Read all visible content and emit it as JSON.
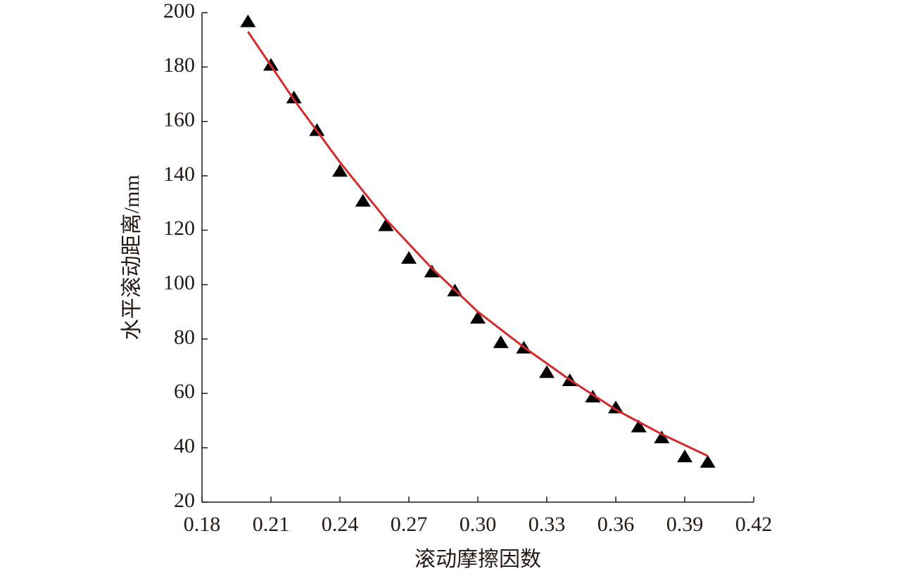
{
  "chart_data": {
    "type": "scatter",
    "x_label": "滚动摩擦因数",
    "y_label": "水平滚动距离/mm",
    "xlim": [
      0.18,
      0.42
    ],
    "xticks": [
      0.18,
      0.21,
      0.24,
      0.27,
      {
        "value": 0.3,
        "label": "0.30"
      },
      0.33,
      0.36,
      0.39,
      0.42
    ],
    "ylim": [
      20,
      200
    ],
    "yticks": [
      20,
      40,
      60,
      80,
      100,
      120,
      140,
      160,
      180,
      200
    ],
    "grid": false,
    "series": [
      {
        "style": "triangle",
        "color": "#000000",
        "x": [
          0.2,
          0.21,
          0.22,
          0.23,
          0.24,
          0.25,
          0.26,
          0.27,
          0.28,
          0.29,
          0.3,
          0.31,
          0.32,
          0.33,
          0.34,
          0.35,
          0.36,
          0.37,
          0.38,
          0.39,
          0.4
        ],
        "values": [
          197,
          181,
          169,
          157,
          142,
          131,
          122,
          110,
          105,
          98,
          88,
          79,
          77,
          68,
          65,
          59,
          55,
          48,
          44,
          37,
          35
        ]
      },
      {
        "style": "line",
        "color": "#d42a2a",
        "x": [
          0.2,
          0.22,
          0.24,
          0.26,
          0.28,
          0.3,
          0.32,
          0.34,
          0.36,
          0.38,
          0.4
        ],
        "values": [
          193,
          168,
          145,
          124,
          106,
          90,
          77,
          65,
          54,
          45,
          37
        ]
      }
    ]
  }
}
